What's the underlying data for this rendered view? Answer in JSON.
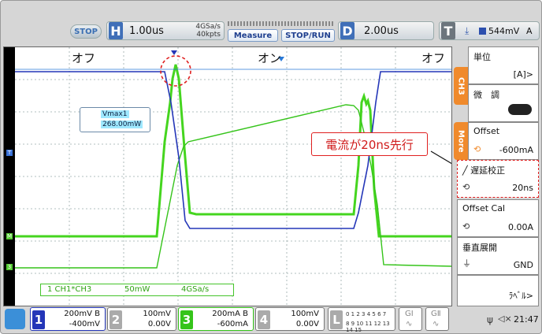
{
  "topbar": {
    "run_state": "STOP",
    "h_letter": "H",
    "timebase": "1.00us",
    "sample_rate": "4GSa/s",
    "points": "40kpts",
    "measure_label": "Measure",
    "stoprun_label": "STOP/RUN",
    "d_letter": "D",
    "delay": "2.00us",
    "t_letter": "T",
    "trigger_level": "544mV",
    "trigger_unit": "A"
  },
  "plot": {
    "label_off_left": "オフ",
    "label_on": "オン",
    "label_off_right": "オフ",
    "vmax_title": "Vmax1",
    "vmax_value": "268.00mW",
    "math_channel": "1  CH1*CH3",
    "math_scale": "50mW",
    "math_rate": "4GSa/s",
    "annotation": "電流が20ns先行",
    "colors": {
      "ch1": "#2436b8",
      "ch3": "#44dd22",
      "math": "#35c41a",
      "annot": "#e02020"
    }
  },
  "right_panel": {
    "tab_ch": "CH3",
    "tab_more": "More",
    "items": [
      {
        "title": "単位",
        "value": "[A]>"
      },
      {
        "title": "微　調",
        "value": ""
      },
      {
        "title": "Offset",
        "value": "-600mA"
      },
      {
        "title": "遅延校正",
        "value": "20ns"
      },
      {
        "title": "Offset Cal",
        "value": "0.00A"
      },
      {
        "title": "垂直展開",
        "value": "GND"
      },
      {
        "title": "",
        "value": "ﾗﾍﾞﾙ>"
      }
    ]
  },
  "bottom": {
    "channels": [
      {
        "num": "1",
        "line1": "200mV  B",
        "line2": "-400mV"
      },
      {
        "num": "2",
        "line1": "100mV",
        "line2": "0.00V"
      },
      {
        "num": "3",
        "line1": "200mA  B",
        "line2": "-600mA"
      },
      {
        "num": "4",
        "line1": "100mV",
        "line2": "0.00V"
      }
    ],
    "logic_letter": "L",
    "logic_row1": "0 1 2 3   4 5 6 7",
    "logic_row2": "8 9 10 11 12 13 14 15",
    "g1": "GⅠ",
    "g2": "GⅡ",
    "clock": "21:47"
  }
}
